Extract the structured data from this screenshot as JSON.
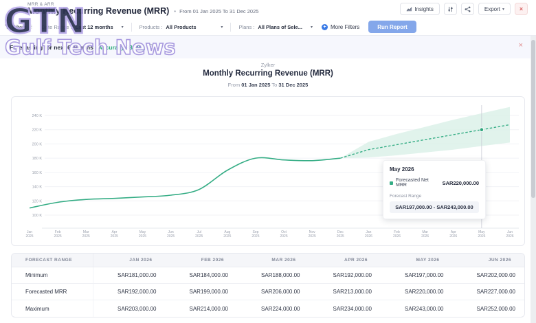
{
  "watermark": {
    "big": "GTN",
    "small": "Gulf Tech News"
  },
  "header": {
    "breadcrumb": "MRR & ARR",
    "title": "Monthly Recurring Revenue (MRR)",
    "bullet": "•",
    "date_range": "From 01 Jan 2025 To 31 Dec 2025",
    "insights_label": "Insights",
    "export_label": "Export",
    "export_chevron": "▾",
    "close_label": "×"
  },
  "filter_bar": {
    "filters_label": "Filters",
    "filters_dots": "⋮",
    "date_range_label": "Date Range :",
    "date_range_value": "Last 12 months",
    "products_label": "Products :",
    "products_value": "All Products",
    "plans_label": "Plans :",
    "plans_value": "All Plans of Sele...",
    "more_filters_label": "More Filters",
    "more_filters_glyph": "+",
    "run_report_label": "Run Report",
    "chevron": "▾"
  },
  "banner": {
    "text": "Forecasting for next 6 months",
    "accuracy": "(Accuracy 93.3%)",
    "info_glyph": "i",
    "close_glyph": "×"
  },
  "chart_header": {
    "org": "Zylker",
    "title": "Monthly Recurring Revenue (MRR)",
    "from_label": "From",
    "from_date": "01 Jan 2025",
    "to_label": "To",
    "to_date": "31 Dec 2025"
  },
  "chart_data": {
    "type": "line",
    "title": "Monthly Recurring Revenue (MRR)",
    "xlabel": "",
    "ylabel": "",
    "ylim": [
      100000,
      250000
    ],
    "grid": true,
    "x": [
      "Jan 2025",
      "Feb 2025",
      "Mar 2025",
      "Apr 2025",
      "May 2025",
      "Jun 2025",
      "Jul 2025",
      "Aug 2025",
      "Sep 2025",
      "Oct 2025",
      "Nov 2025",
      "Dec 2025",
      "Jan 2026",
      "Feb 2026",
      "Mar 2026",
      "Apr 2026",
      "May 2026",
      "Jun 2026"
    ],
    "ytick_values": [
      240000,
      220000,
      200000,
      180000,
      160000,
      140000,
      120000,
      100000
    ],
    "ytick_labels": [
      "240 K",
      "220 K",
      "200 K",
      "180 K",
      "160 K",
      "140 K",
      "120 K",
      "100 K"
    ],
    "series": [
      {
        "name": "Net MRR",
        "values": [
          110000,
          118000,
          122000,
          123500,
          125500,
          128000,
          136000,
          163000,
          180000,
          177500,
          176500,
          180000,
          null,
          null,
          null,
          null,
          null,
          null
        ]
      },
      {
        "name": "Forecasted Net MRR",
        "values": [
          null,
          null,
          null,
          null,
          null,
          null,
          null,
          null,
          null,
          null,
          null,
          null,
          192000,
          199000,
          206000,
          213000,
          220000,
          227000
        ],
        "style": "dashed"
      }
    ],
    "forecast_band": {
      "x_start": "Jan 2026",
      "min": [
        181000,
        184000,
        188000,
        192000,
        197000,
        202000
      ],
      "max": [
        203000,
        214000,
        224000,
        234000,
        243000,
        252000
      ]
    },
    "highlighted_x": "May 2026",
    "colors": {
      "line": "#35ad85",
      "band": "#d9f0e7",
      "dot": "#2da57c",
      "hover_line": "#c9ccd4"
    }
  },
  "tooltip": {
    "title": "May 2026",
    "series_label": "Forecasted Net MRR",
    "series_value": "SAR220,000.00",
    "range_label": "Forecast Range",
    "range_value": "SAR197,000.00 - SAR243,000.00"
  },
  "table": {
    "col_header": "FORECAST RANGE",
    "columns": [
      "JAN 2026",
      "FEB 2026",
      "MAR 2026",
      "APR 2026",
      "MAY 2026",
      "JUN 2026"
    ],
    "rows": [
      {
        "label": "Minimum",
        "values": [
          "SAR181,000.00",
          "SAR184,000.00",
          "SAR188,000.00",
          "SAR192,000.00",
          "SAR197,000.00",
          "SAR202,000.00"
        ]
      },
      {
        "label": "Forecasted MRR",
        "values": [
          "SAR192,000.00",
          "SAR199,000.00",
          "SAR206,000.00",
          "SAR213,000.00",
          "SAR220,000.00",
          "SAR227,000.00"
        ]
      },
      {
        "label": "Maximum",
        "values": [
          "SAR203,000.00",
          "SAR214,000.00",
          "SAR224,000.00",
          "SAR234,000.00",
          "SAR243,000.00",
          "SAR252,000.00"
        ]
      }
    ]
  }
}
